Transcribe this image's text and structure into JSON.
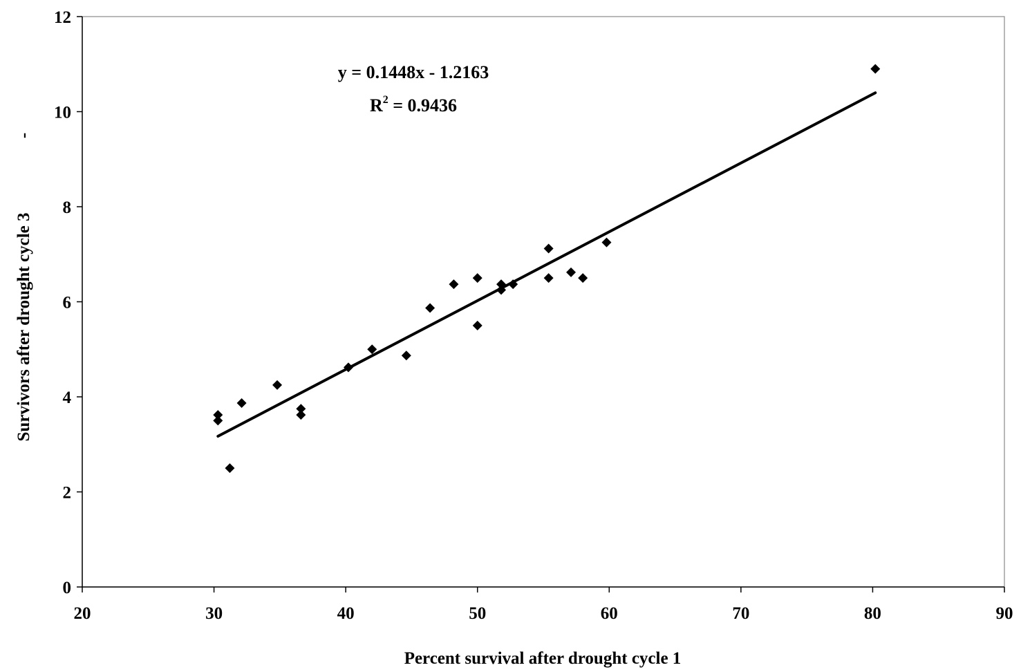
{
  "chart_data": {
    "type": "scatter",
    "xlabel": "Percent survival after drought cycle 1",
    "ylabel": "Survivors after drought cycle 3",
    "ylabel_extra": "-",
    "xlim": [
      20,
      90
    ],
    "ylim": [
      0,
      12
    ],
    "x_ticks": [
      20,
      30,
      40,
      50,
      60,
      70,
      80,
      90
    ],
    "y_ticks": [
      0,
      2,
      4,
      6,
      8,
      10,
      12
    ],
    "grid": false,
    "legend": "none",
    "marker": "diamond",
    "marker_color": "#000000",
    "points": [
      {
        "x": 30.3,
        "y": 3.62
      },
      {
        "x": 30.3,
        "y": 3.5
      },
      {
        "x": 31.2,
        "y": 2.5
      },
      {
        "x": 32.1,
        "y": 3.87
      },
      {
        "x": 34.8,
        "y": 4.25
      },
      {
        "x": 36.6,
        "y": 3.75
      },
      {
        "x": 36.6,
        "y": 3.62
      },
      {
        "x": 40.2,
        "y": 4.62
      },
      {
        "x": 42.0,
        "y": 5.0
      },
      {
        "x": 44.6,
        "y": 4.87
      },
      {
        "x": 46.4,
        "y": 5.87
      },
      {
        "x": 48.2,
        "y": 6.37
      },
      {
        "x": 50.0,
        "y": 6.5
      },
      {
        "x": 50.0,
        "y": 5.5
      },
      {
        "x": 51.8,
        "y": 6.37
      },
      {
        "x": 51.8,
        "y": 6.25
      },
      {
        "x": 52.7,
        "y": 6.37
      },
      {
        "x": 55.4,
        "y": 7.12
      },
      {
        "x": 55.4,
        "y": 6.5
      },
      {
        "x": 57.1,
        "y": 6.62
      },
      {
        "x": 58.0,
        "y": 6.5
      },
      {
        "x": 59.8,
        "y": 7.25
      },
      {
        "x": 80.2,
        "y": 10.9
      }
    ],
    "trendline": {
      "slope": 0.1448,
      "intercept": -1.2163,
      "x_range": [
        30.3,
        80.2
      ],
      "equation_label": "y = 0.1448x - 1.2163",
      "r2_prefix": "R",
      "r2_sup": "2",
      "r2_value": " = 0.9436"
    }
  }
}
